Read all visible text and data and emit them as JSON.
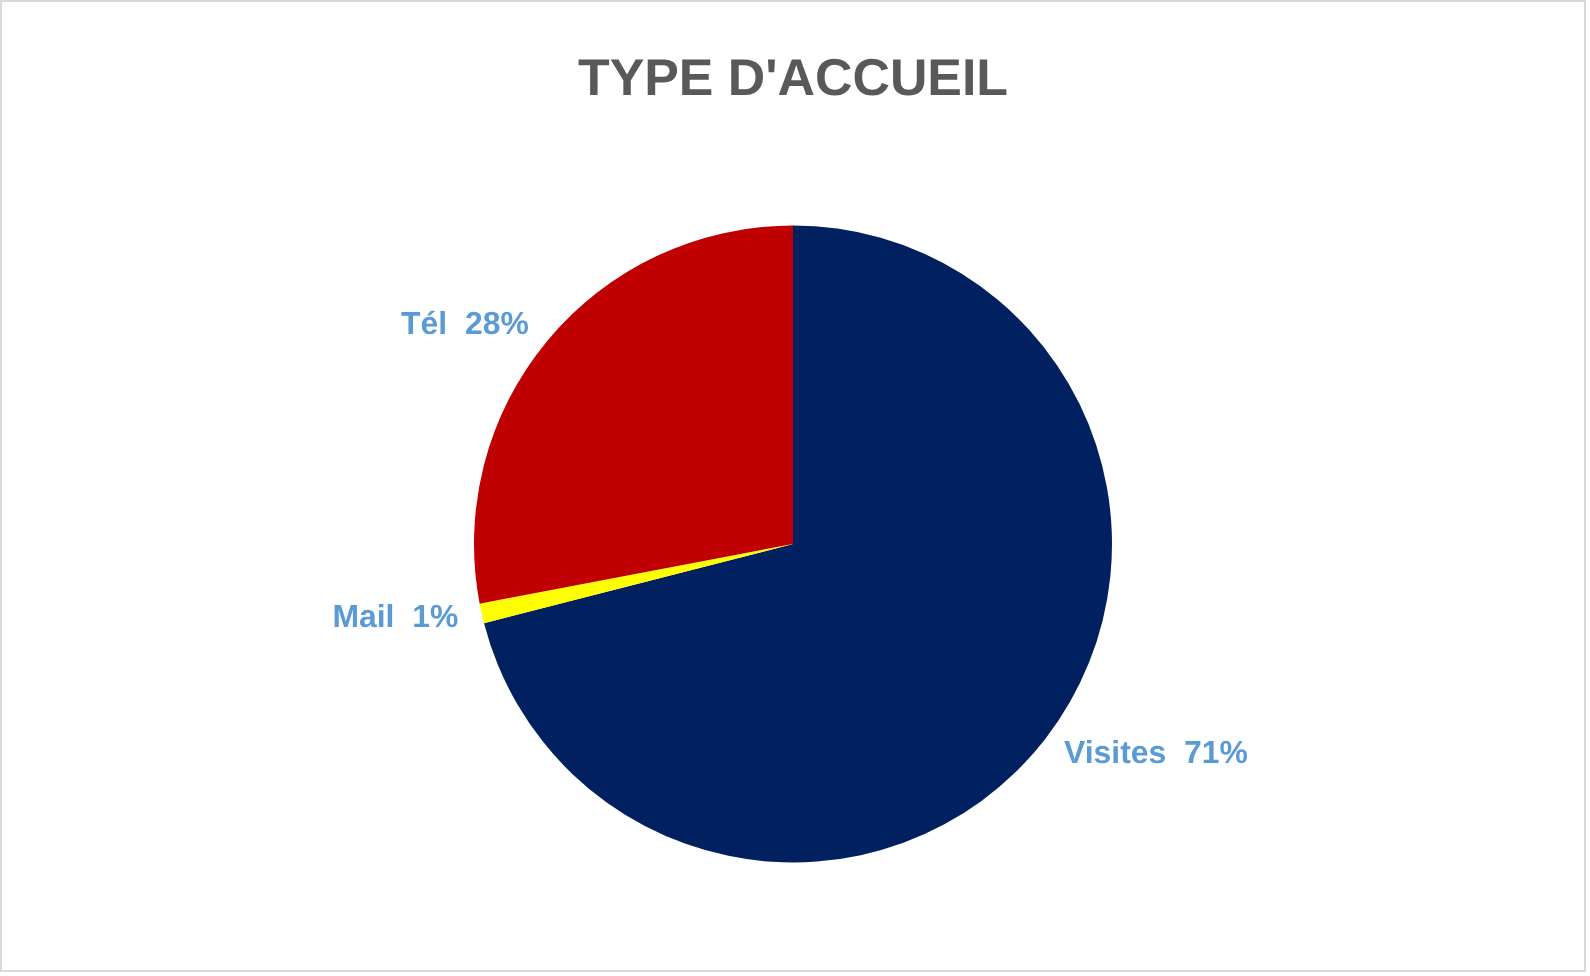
{
  "chart_data": {
    "type": "pie",
    "title": "TYPE D'ACCUEIL",
    "categories": [
      "Visites",
      "Mail",
      "Tél"
    ],
    "values": [
      71,
      1,
      28
    ],
    "colors": [
      "#002060",
      "#ffff00",
      "#c00000"
    ],
    "value_labels": [
      "71%",
      "1%",
      "28%"
    ],
    "legend": false
  }
}
